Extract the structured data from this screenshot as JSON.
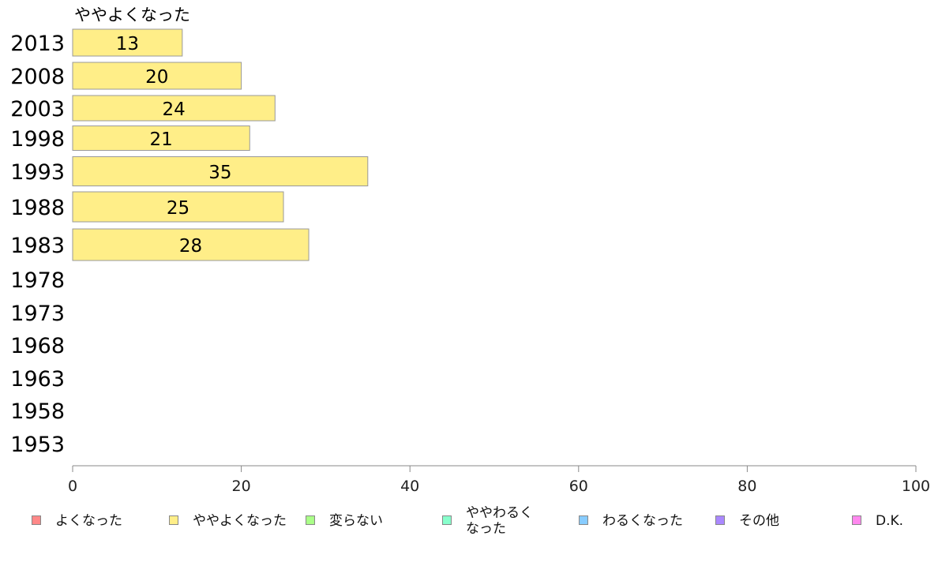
{
  "chart_data": {
    "type": "bar",
    "orientation": "horizontal",
    "series_title": "ややよくなった",
    "categories": [
      "2013",
      "2008",
      "2003",
      "1998",
      "1993",
      "1988",
      "1983",
      "1978",
      "1973",
      "1968",
      "1963",
      "1958",
      "1953"
    ],
    "series": [
      {
        "name": "ややよくなった",
        "color": "#ffee88",
        "values": [
          13,
          20,
          24,
          21,
          35,
          25,
          28,
          null,
          null,
          null,
          null,
          null,
          null
        ]
      }
    ],
    "data_labels": [
      "13",
      "20",
      "24",
      "21",
      "35",
      "25",
      "28",
      "",
      "",
      "",
      "",
      "",
      ""
    ],
    "xlim": [
      0,
      100
    ],
    "xticks": [
      0,
      20,
      40,
      60,
      80,
      100
    ],
    "xlabel": "",
    "ylabel": "",
    "grid": false,
    "legend_position": "bottom"
  },
  "legend": [
    {
      "label": "よくなった",
      "color": "#ff8888"
    },
    {
      "label": "ややよくなった",
      "color": "#ffee88"
    },
    {
      "label": "変らない",
      "color": "#aaff88"
    },
    {
      "label": "ややわるく\nなった",
      "color": "#88ffcc"
    },
    {
      "label": "わるくなった",
      "color": "#88ccff"
    },
    {
      "label": "その他",
      "color": "#aa88ff"
    },
    {
      "label": "D.K.",
      "color": "#ff88ee"
    }
  ]
}
